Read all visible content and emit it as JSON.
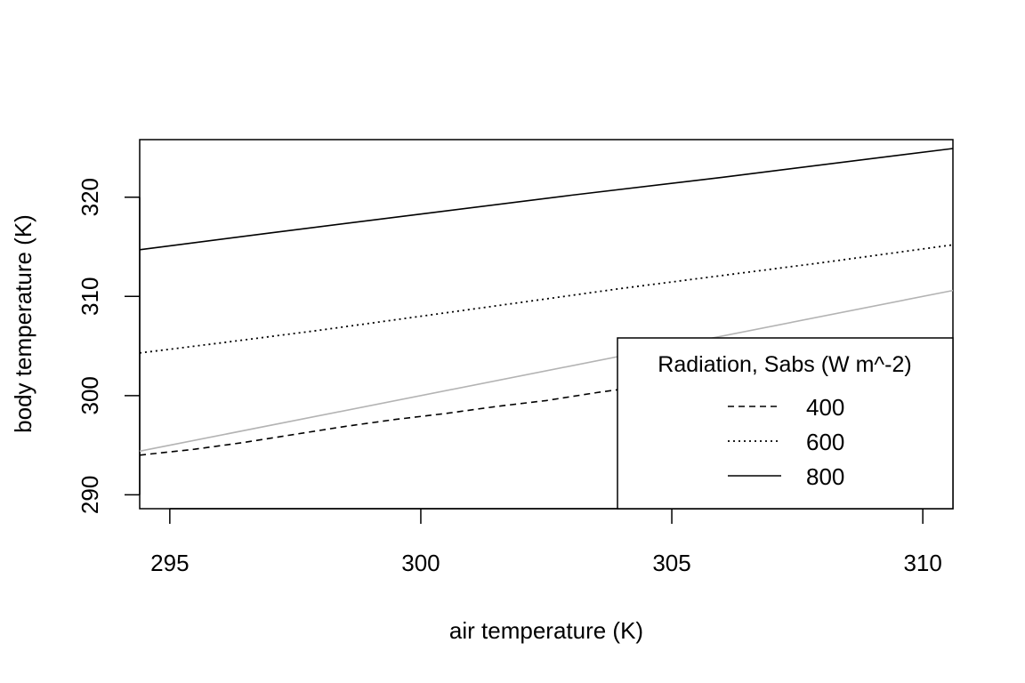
{
  "chart_data": {
    "type": "line",
    "title": "",
    "xlabel": "air temperature (K)",
    "ylabel": "body temperature (K)",
    "xlim": [
      294.4,
      310.6
    ],
    "ylim": [
      288.6,
      325.8
    ],
    "xticks": [
      295,
      300,
      305,
      310
    ],
    "yticks": [
      290,
      300,
      310,
      320
    ],
    "grid": false,
    "legend": {
      "title": "Radiation, Sabs (W m^-2)",
      "position": "bottom-right",
      "entries": [
        "400",
        "600",
        "800"
      ]
    },
    "series": [
      {
        "name": "400",
        "style": "dashed",
        "color": "#000000",
        "x": [
          294.4,
          295.5,
          296.5,
          297.5,
          298.5,
          299.5,
          300.5,
          301.5,
          302.5,
          303.5,
          304.5,
          305.5,
          306.5,
          307.5,
          308.5,
          309.5,
          310.6
        ],
        "y": [
          294.0,
          294.6,
          295.3,
          296.1,
          296.9,
          297.6,
          298.2,
          298.9,
          299.5,
          300.3,
          301.0,
          301.7,
          302.4,
          303.1,
          303.8,
          304.4,
          305.0
        ]
      },
      {
        "name": "600",
        "style": "dotted",
        "color": "#000000",
        "x": [
          294.4,
          296.0,
          298.0,
          300.0,
          302.0,
          304.0,
          306.0,
          308.0,
          310.6
        ],
        "y": [
          304.3,
          305.3,
          306.6,
          308.0,
          309.4,
          310.8,
          312.1,
          313.4,
          315.2
        ]
      },
      {
        "name": "800",
        "style": "solid",
        "color": "#000000",
        "x": [
          294.4,
          297.0,
          300.0,
          303.0,
          306.0,
          310.6
        ],
        "y": [
          314.7,
          316.4,
          318.3,
          320.2,
          322.0,
          324.9
        ]
      },
      {
        "style": "solid",
        "color": "#b3b3b3",
        "x": [
          294.4,
          310.6
        ],
        "y": [
          294.4,
          310.6
        ]
      }
    ]
  }
}
